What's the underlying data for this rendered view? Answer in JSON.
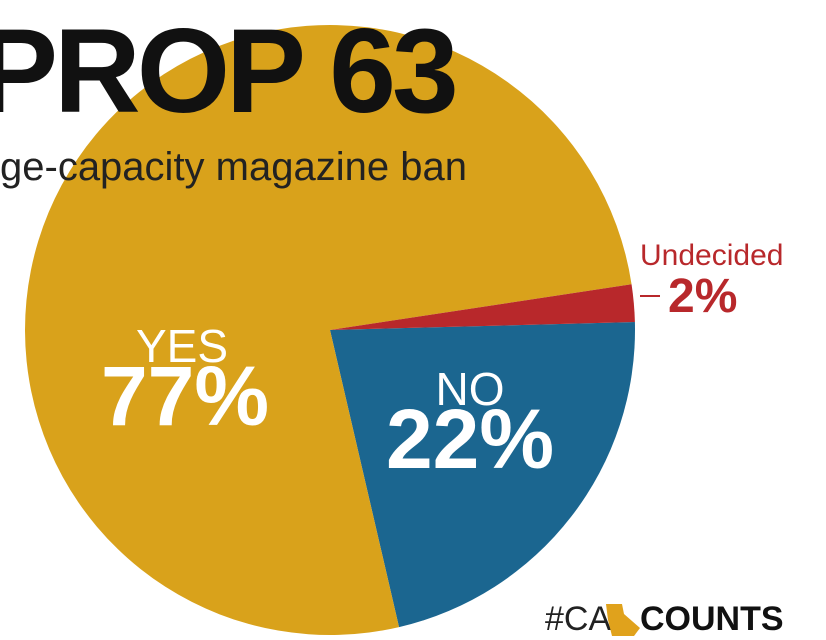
{
  "chart_data": {
    "type": "pie",
    "title": "PROP 63",
    "subtitle": "ge-capacity magazine ban",
    "categories": [
      "NO",
      "YES",
      "Undecided"
    ],
    "values": [
      22,
      77,
      2
    ],
    "value_labels": [
      "22%",
      "77%",
      "2%"
    ],
    "colors": [
      "#1b6690",
      "#d9a21b",
      "#b8282b"
    ],
    "footer": {
      "hashtag": "#CA",
      "brand": "COUNTS"
    }
  }
}
